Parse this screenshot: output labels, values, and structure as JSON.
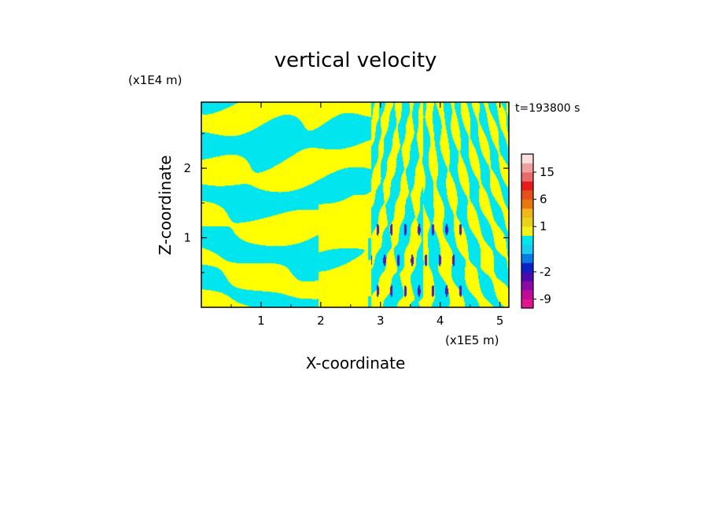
{
  "chart_data": {
    "type": "heatmap",
    "title": "vertical velocity",
    "xlabel": "X-coordinate",
    "ylabel": "Z-coordinate",
    "x_unit": "(x1E5 m)",
    "y_unit": "(x1E4 m)",
    "time_label": "t=193800 s",
    "xlim": [
      0,
      5.15
    ],
    "ylim": [
      0,
      2.95
    ],
    "x_ticks": [
      "1",
      "2",
      "3",
      "4",
      "5"
    ],
    "x_tick_values": [
      1,
      2,
      3,
      4,
      5
    ],
    "y_ticks": [
      "1",
      "2"
    ],
    "y_tick_values": [
      1,
      2
    ],
    "colorbar": {
      "tick_labels": [
        "15",
        "6",
        "1",
        "-2",
        "-9"
      ],
      "tick_values": [
        15,
        6,
        1,
        -2,
        -9
      ],
      "levels": [
        -12,
        -9,
        -6,
        -4,
        -2,
        -1,
        -0.5,
        0,
        0.5,
        1,
        2,
        4,
        6,
        9,
        12,
        15,
        20,
        25
      ],
      "colors": [
        "#e0158f",
        "#c00a9a",
        "#8a0aa6",
        "#4a0ab0",
        "#0a22c8",
        "#0a7ae6",
        "#18cdf0",
        "#00e5ee",
        "#f2f21a",
        "#e8d21a",
        "#eeb81a",
        "#e8780e",
        "#e8501a",
        "#e81a1a",
        "#e86a6a",
        "#eea0a0",
        "#f8dedd"
      ]
    },
    "field_colors": {
      "positive": "#ffff00",
      "negative": "#00e5ee",
      "strong_negative": "#1a2acc",
      "very_strong_negative": "#7a0aa6"
    }
  }
}
